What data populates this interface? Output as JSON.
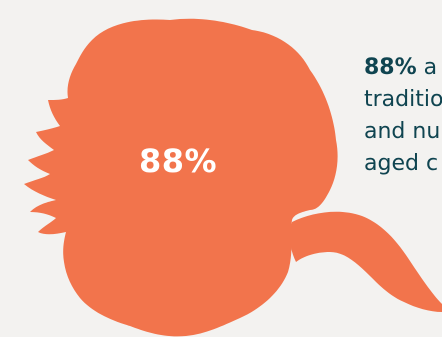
{
  "stat": {
    "value": "88%"
  },
  "caption": {
    "highlight": "88%",
    "line1_rest": " a",
    "line2": "traditio",
    "line3": "and nu",
    "line4": "aged c"
  },
  "colors": {
    "background": "#f3f2f0",
    "blob": "#f2744c",
    "text_dark": "#0f4450",
    "stat_text": "#ffffff"
  }
}
